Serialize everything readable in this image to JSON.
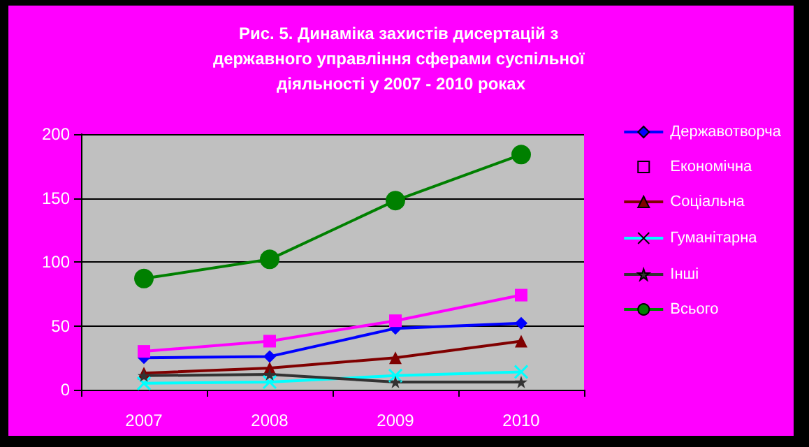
{
  "chart_data": {
    "type": "line",
    "title": "Рис. 5. Динаміка захистів дисертацій з державного управління сферами суспільної діяльності у 2007 - 2010 роках",
    "categories": [
      "2007",
      "2008",
      "2009",
      "2010"
    ],
    "series": [
      {
        "name": "Державотворча",
        "color": "#0000ff",
        "marker": "diamond",
        "values": [
          25,
          26,
          48,
          52
        ]
      },
      {
        "name": "Економічна",
        "color": "#ff00ff",
        "marker": "square",
        "values": [
          30,
          38,
          54,
          74
        ]
      },
      {
        "name": "Соціальна",
        "color": "#800000",
        "marker": "triangle",
        "values": [
          13,
          17,
          25,
          38
        ]
      },
      {
        "name": "Гуманітарна",
        "color": "#00ffff",
        "marker": "cross",
        "values": [
          5,
          6,
          11,
          14
        ]
      },
      {
        "name": "Інші",
        "color": "#333333",
        "marker": "star",
        "values": [
          11,
          12,
          6,
          6
        ]
      },
      {
        "name": "Всього",
        "color": "#008000",
        "marker": "circle",
        "values": [
          87,
          102,
          148,
          184
        ]
      }
    ],
    "ylim": [
      0,
      200
    ],
    "yticks": [
      0,
      50,
      100,
      150,
      200
    ],
    "grid": "y",
    "legend": "right"
  }
}
